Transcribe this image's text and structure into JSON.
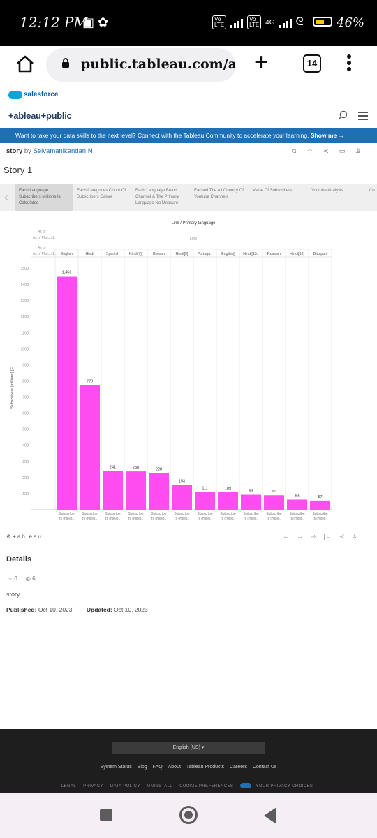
{
  "status_bar": {
    "time": "12:12 PM",
    "battery": "46%",
    "network": "4G"
  },
  "browser": {
    "url": "public.tableau.com/app",
    "tab_count": "14"
  },
  "salesforce": {
    "brand": "salesforce"
  },
  "tableau": {
    "logo": "+ableau+public"
  },
  "banner": {
    "text": "Want to take your data skills to the next level? Connect with the Tableau Community to accelerate your learning.",
    "cta": "Show me →"
  },
  "story_bar": {
    "name": "story",
    "by": "by",
    "author": "Selvamanikandan N"
  },
  "story_title": "Story 1",
  "story_points": [
    "Each Language Subscribers Millions Is Calculated",
    "Each Categories Count Of Subscribers Galore",
    "Each Language Brand Channel & The Primary Language No Measure",
    "Eached The All Country Of Youtube Channels",
    "Value Of Subscribers",
    "Youtube Analysis",
    "Co"
  ],
  "chart_data": {
    "type": "bar",
    "title": "Link / Primary language",
    "column_header": "Link",
    "row_labels": [
      "As of March 1..",
      "As of March 1.."
    ],
    "categories": [
      "English",
      "Hindi",
      "Spanish",
      "Hindi[7][",
      "Korean",
      "Hindi[9]",
      "Portugu..",
      "English[",
      "Hindi[13..",
      "Russian",
      "Hindi[16]",
      "Bhojpuri"
    ],
    "values": [
      1450,
      773,
      241,
      238,
      228,
      153,
      111,
      109,
      93,
      90,
      63,
      57
    ],
    "value_labels": [
      "1,450",
      "773",
      "241",
      "238",
      "228",
      "153",
      "111",
      "109",
      "93",
      "90",
      "63",
      "57"
    ],
    "ylabel": "Subscribers (millions) [F..",
    "yticks": [
      100,
      200,
      300,
      400,
      500,
      600,
      700,
      800,
      900,
      1000,
      1100,
      1200,
      1300,
      1400,
      1500
    ],
    "ylim": [
      0,
      1500
    ],
    "bottom_label_line1": "Subscribe",
    "bottom_label_line2": "rs (millio..",
    "bar_color": "#ff4df2"
  },
  "toolbar": {
    "brand": "+ableau"
  },
  "details": {
    "heading": "Details",
    "favorites": "0",
    "views": "6",
    "workbook_name": "story",
    "published_label": "Published:",
    "published_value": "Oct 10, 2023",
    "updated_label": "Updated:",
    "updated_value": "Oct 10, 2023"
  },
  "footer": {
    "language": "English (US) ▾",
    "links": [
      "System Status",
      "Blog",
      "FAQ",
      "About",
      "Tableau Products",
      "Careers",
      "Contact Us"
    ],
    "legal": [
      "LEGAL",
      "PRIVACY",
      "DATA POLICY",
      "UNINSTALL",
      "COOKIE PREFERENCES"
    ],
    "privacy_choices": "YOUR PRIVACY CHOICES"
  }
}
